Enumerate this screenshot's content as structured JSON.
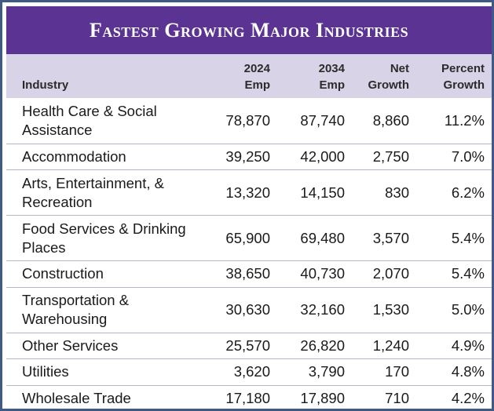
{
  "title": "Fastest Growing Major Industries",
  "table": {
    "headers": [
      "Industry",
      "2024\nEmp",
      "2034\nEmp",
      "Net\nGrowth",
      "Percent\nGrowth"
    ],
    "rows": [
      {
        "industry": "Health Care & Social Assistance",
        "emp_2024": "78,870",
        "emp_2034": "87,740",
        "net_growth": "8,860",
        "percent_growth": "11.2%"
      },
      {
        "industry": "Accommodation",
        "emp_2024": "39,250",
        "emp_2034": "42,000",
        "net_growth": "2,750",
        "percent_growth": "7.0%"
      },
      {
        "industry": "Arts, Entertainment, & Recreation",
        "emp_2024": "13,320",
        "emp_2034": "14,150",
        "net_growth": "830",
        "percent_growth": "6.2%"
      },
      {
        "industry": "Food Services & Drinking Places",
        "emp_2024": "65,900",
        "emp_2034": "69,480",
        "net_growth": "3,570",
        "percent_growth": "5.4%"
      },
      {
        "industry": "Construction",
        "emp_2024": "38,650",
        "emp_2034": "40,730",
        "net_growth": "2,070",
        "percent_growth": "5.4%"
      },
      {
        "industry": "Transportation & Warehousing",
        "emp_2024": "30,630",
        "emp_2034": "32,160",
        "net_growth": "1,530",
        "percent_growth": "5.0%"
      },
      {
        "industry": "Other Services",
        "emp_2024": "25,570",
        "emp_2034": "26,820",
        "net_growth": "1,240",
        "percent_growth": "4.9%"
      },
      {
        "industry": "Utilities",
        "emp_2024": "3,620",
        "emp_2034": "3,790",
        "net_growth": "170",
        "percent_growth": "4.8%"
      },
      {
        "industry": "Wholesale Trade",
        "emp_2024": "17,180",
        "emp_2034": "17,890",
        "net_growth": "710",
        "percent_growth": "4.2%"
      }
    ]
  },
  "colors": {
    "title_background": "#5b3392",
    "header_background": "#d9d3e8",
    "frame_border": "#3f5a86"
  }
}
